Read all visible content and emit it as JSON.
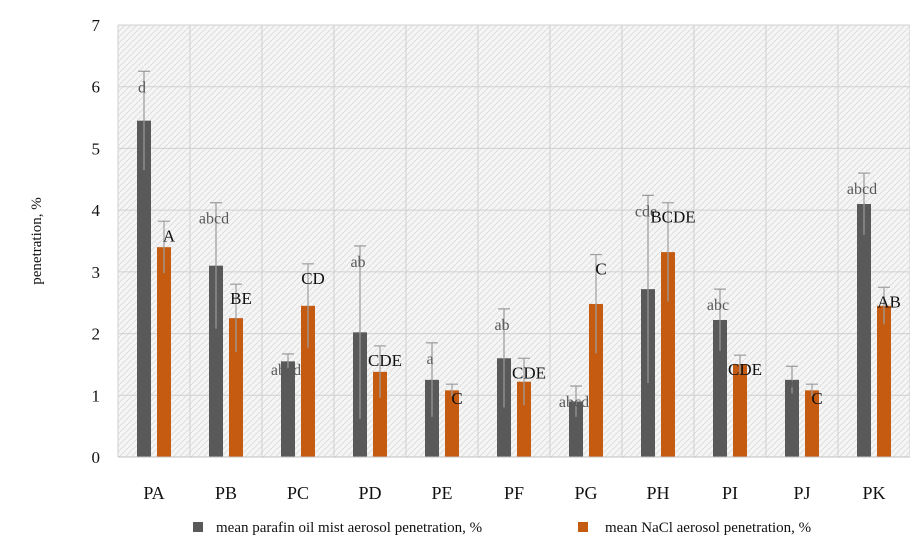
{
  "chart_data": {
    "type": "bar",
    "ylabel": "penetration, %",
    "ylim": [
      0,
      7
    ],
    "yticks": [
      0,
      1,
      2,
      3,
      4,
      5,
      6,
      7
    ],
    "grid": "on",
    "legend_position": "bottom",
    "categories": [
      "PA",
      "PB",
      "PC",
      "PD",
      "PE",
      "PF",
      "PG",
      "PH",
      "PI",
      "PJ",
      "PK"
    ],
    "series": [
      {
        "name": "mean parafin oil mist aerosol penetration, %",
        "color": "#595959",
        "values": [
          5.45,
          3.1,
          1.55,
          2.02,
          1.25,
          1.6,
          0.9,
          2.72,
          2.22,
          1.25,
          4.1
        ],
        "errors": [
          0.8,
          1.02,
          0.12,
          1.4,
          0.6,
          0.8,
          0.25,
          1.52,
          0.5,
          0.22,
          0.5
        ],
        "labels": [
          "d",
          "abcd",
          "abcd",
          "ab",
          "a",
          "ab",
          "abcd",
          "cde",
          "abc",
          "a",
          "abcd"
        ]
      },
      {
        "name": "mean NaCl aerosol penetration, %",
        "color": "#c55a11",
        "values": [
          3.4,
          2.25,
          2.45,
          1.38,
          1.08,
          1.22,
          2.48,
          3.32,
          1.5,
          1.08,
          2.45
        ],
        "errors": [
          0.42,
          0.55,
          0.68,
          0.42,
          0.1,
          0.38,
          0.8,
          0.8,
          0.15,
          0.1,
          0.3
        ],
        "labels": [
          "A",
          "BE",
          "CD",
          "CDE",
          "C",
          "CDE",
          "C",
          "BCDE",
          "CDE",
          "C",
          "AB"
        ]
      }
    ]
  }
}
